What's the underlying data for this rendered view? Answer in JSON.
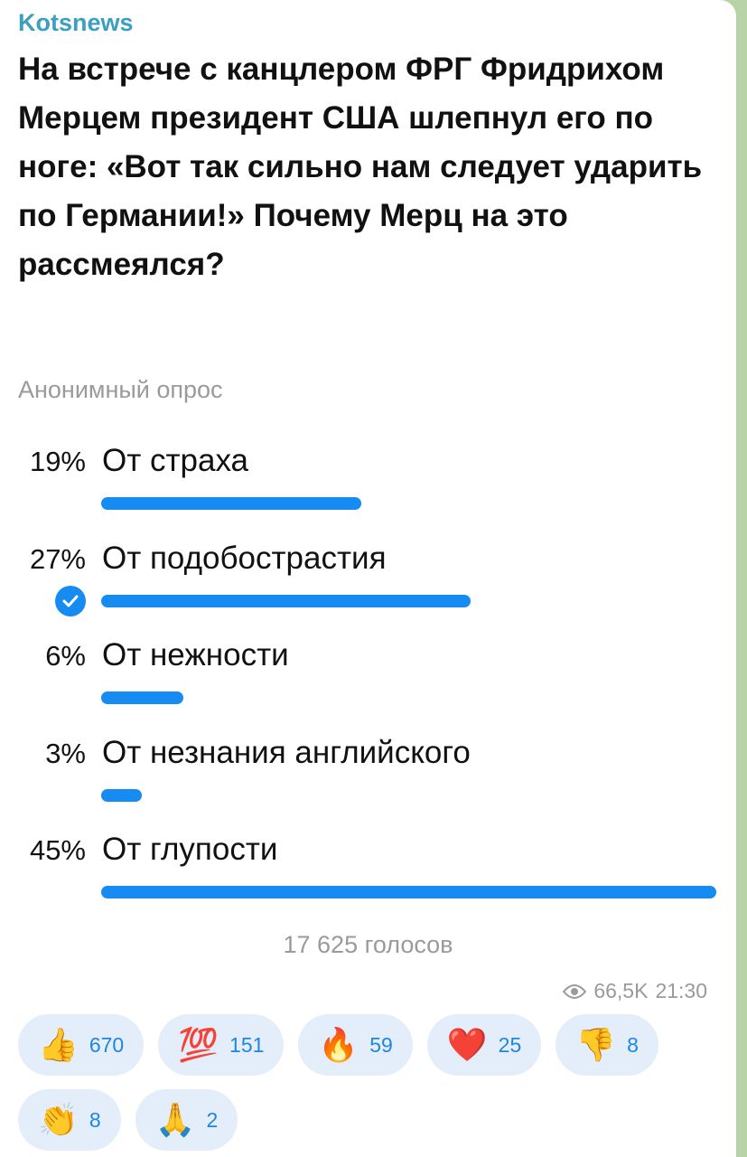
{
  "channel": "Kotsnews",
  "question": "На встрече с канцлером ФРГ Фридрихом Мерцем президент США шлепнул его по ноге: «Вот так сильно нам следует ударить по Германии!» Почему Мерц на это рассмеялся?",
  "poll_type": "Анонимный опрос",
  "options": [
    {
      "percent": 19,
      "percent_label": "19%",
      "text": "От страха",
      "voted": false
    },
    {
      "percent": 27,
      "percent_label": "27%",
      "text": "От подобострастия",
      "voted": true
    },
    {
      "percent": 6,
      "percent_label": "6%",
      "text": "От нежности",
      "voted": false
    },
    {
      "percent": 3,
      "percent_label": "3%",
      "text": "От незнания английского",
      "voted": false
    },
    {
      "percent": 45,
      "percent_label": "45%",
      "text": "От глупости",
      "voted": false
    }
  ],
  "votes": "17 625 голосов",
  "views": "66,5K",
  "time": "21:30",
  "reactions": [
    {
      "emoji": "👍",
      "count": 670
    },
    {
      "emoji": "💯",
      "count": 151
    },
    {
      "emoji": "🔥",
      "count": 59
    },
    {
      "emoji": "❤️",
      "count": 25
    },
    {
      "emoji": "👎",
      "count": 8
    },
    {
      "emoji": "👏",
      "count": 8
    },
    {
      "emoji": "🙏",
      "count": 2
    }
  ]
}
